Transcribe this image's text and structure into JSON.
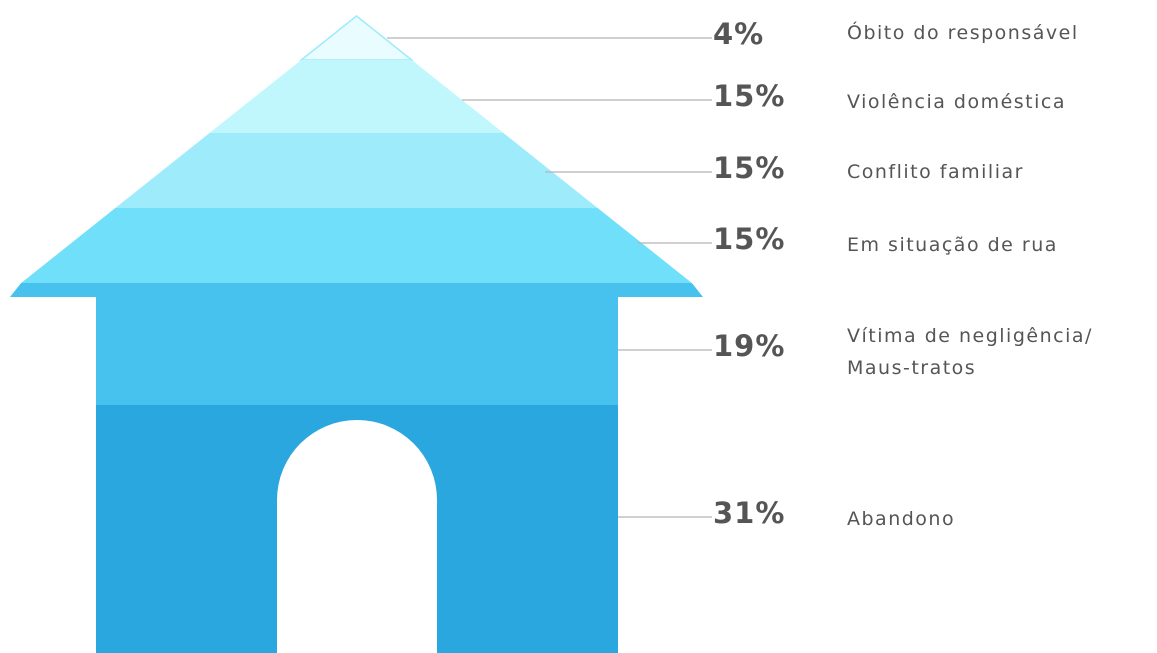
{
  "chart_data": {
    "type": "house",
    "categories": [
      "Óbito do responsável",
      "Violência doméstica",
      "Conflito familiar",
      "Em situação de rua",
      "Vítima de negligência/\nMaus-tratos",
      "Abandono"
    ],
    "values": [
      4,
      15,
      15,
      15,
      19,
      31
    ],
    "value_labels": [
      "4%",
      "15%",
      "15%",
      "15%",
      "19%",
      "31%"
    ],
    "colors": [
      "#e9fcff",
      "#bff7fd",
      "#9debfb",
      "#70dffa",
      "#47c2ef",
      "#2aa7df"
    ]
  }
}
